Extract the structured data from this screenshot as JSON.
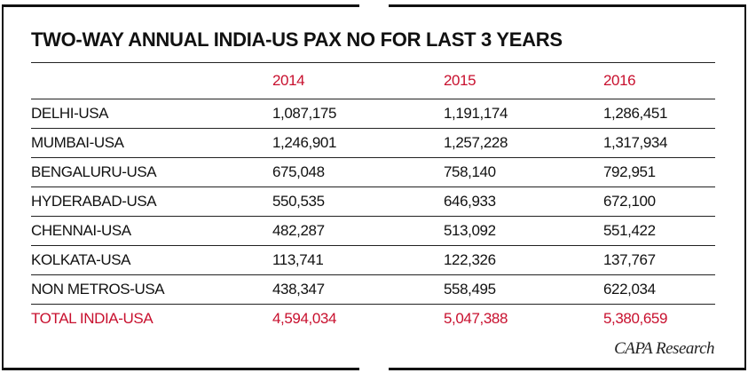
{
  "chart_data": {
    "type": "table",
    "title": "TWO-WAY ANNUAL INDIA-US PAX NO FOR LAST 3 YEARS",
    "columns": [
      "2014",
      "2015",
      "2016"
    ],
    "rows": [
      {
        "label": "DELHI-USA",
        "values": [
          "1,087,175",
          "1,191,174",
          "1,286,451"
        ]
      },
      {
        "label": "MUMBAI-USA",
        "values": [
          "1,246,901",
          "1,257,228",
          "1,317,934"
        ]
      },
      {
        "label": "BENGALURU-USA",
        "values": [
          "675,048",
          "758,140",
          "792,951"
        ]
      },
      {
        "label": "HYDERABAD-USA",
        "values": [
          "550,535",
          "646,933",
          "672,100"
        ]
      },
      {
        "label": "CHENNAI-USA",
        "values": [
          "482,287",
          "513,092",
          "551,422"
        ]
      },
      {
        "label": "KOLKATA-USA",
        "values": [
          "113,741",
          "122,326",
          "137,767"
        ]
      },
      {
        "label": "NON METROS-USA",
        "values": [
          "438,347",
          "558,495",
          "622,034"
        ]
      }
    ],
    "total": {
      "label": "TOTAL INDIA-USA",
      "values": [
        "4,594,034",
        "5,047,388",
        "5,380,659"
      ]
    },
    "source": "CAPA Research",
    "colors": {
      "accent": "#c8102e",
      "text": "#111111"
    }
  }
}
